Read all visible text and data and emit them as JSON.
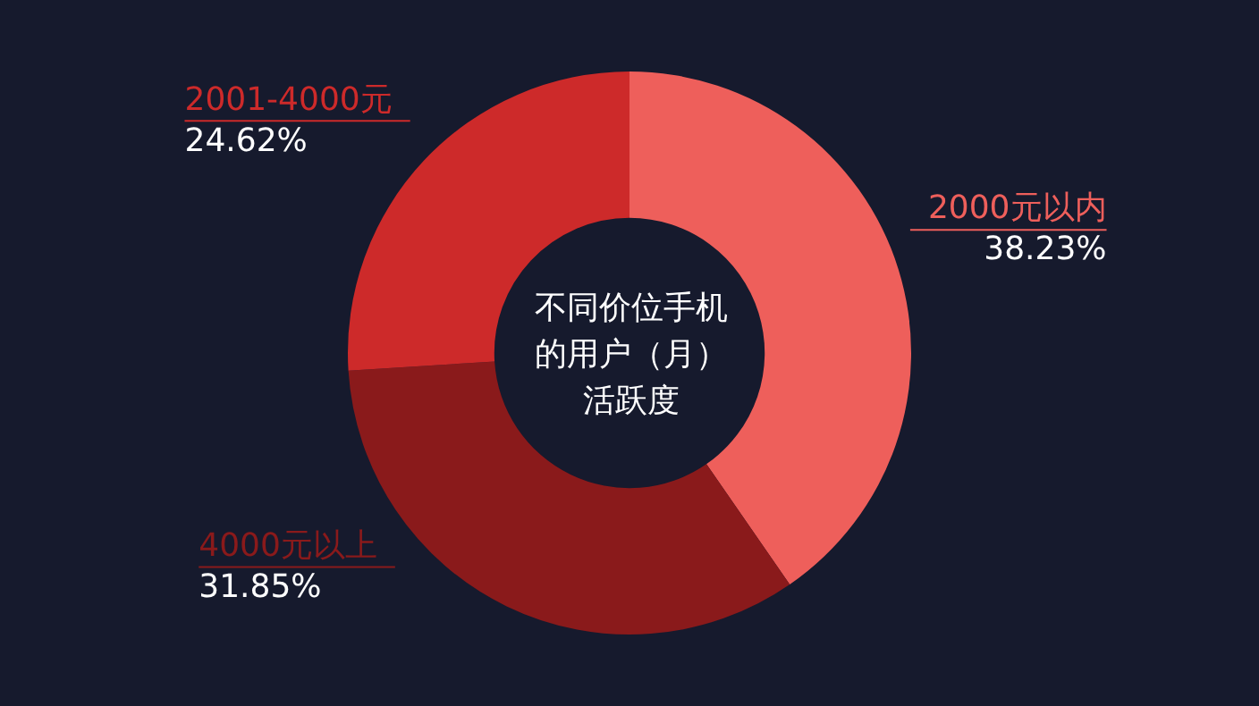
{
  "chart_data": {
    "type": "donut",
    "title": "不同价位手机的用户（月）活跃度",
    "categories": [
      "2000元以内",
      "4000元以上",
      "2001-4000元"
    ],
    "values": [
      38.23,
      31.85,
      24.62
    ],
    "value_labels": [
      "38.23%",
      "31.85%",
      "24.62%"
    ],
    "colors": [
      "#ee5f5b",
      "#8a1a1b",
      "#cd2a2a"
    ],
    "legend": false
  }
}
